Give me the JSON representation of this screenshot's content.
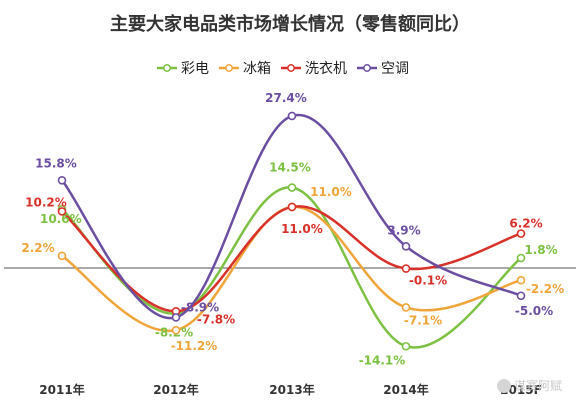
{
  "chart_data": {
    "type": "line",
    "title": "主要大家电品类市场增长情况（零售额同比）",
    "categories": [
      "2011年",
      "2012年",
      "2013年",
      "2014年",
      "2015F"
    ],
    "series": [
      {
        "name": "彩电",
        "values": [
          10.6,
          -8.2,
          14.5,
          -14.1,
          1.8
        ],
        "color": "#7dc142",
        "labels": [
          "10.6%",
          "-8.2%",
          "14.5%",
          "-14.1%",
          "1.8%"
        ]
      },
      {
        "name": "冰箱",
        "values": [
          2.2,
          -11.2,
          11.0,
          -7.1,
          -2.2
        ],
        "color": "#f0a53a",
        "labels": [
          "2.2%",
          "-11.2%",
          "11.0%",
          "-7.1%",
          "-2.2%"
        ]
      },
      {
        "name": "洗衣机",
        "values": [
          10.2,
          -7.8,
          11.0,
          -0.1,
          6.2
        ],
        "color": "#d9312a",
        "labels": [
          "10.2%",
          "-7.8%",
          "11.0%",
          "-0.1%",
          "6.2%"
        ]
      },
      {
        "name": "空调",
        "values": [
          15.8,
          -8.9,
          27.4,
          3.9,
          -5.0
        ],
        "color": "#6b4ea2",
        "labels": [
          "15.8%",
          "-8.9%",
          "27.4%",
          "3.9%",
          "-5.0%"
        ]
      }
    ],
    "ylim": [
      -20,
      35
    ],
    "grid": false,
    "legend_placement": "top-center",
    "xlabel": "",
    "ylabel": ""
  },
  "watermark": {
    "text": "谋赛阿赋"
  }
}
